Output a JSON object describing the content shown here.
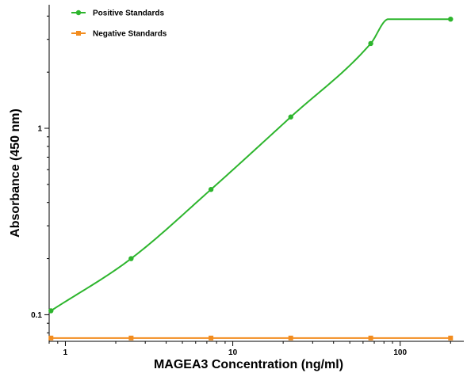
{
  "chart_data": {
    "type": "line",
    "title": "",
    "xlabel": "MAGEA3 Concentration (ng/ml)",
    "ylabel": "Absorbance (450 nm)",
    "xscale": "log",
    "yscale": "log",
    "xlim": [
      0.8,
      240
    ],
    "ylim": [
      0.072,
      4.6
    ],
    "x_ticks": [
      {
        "value": 1,
        "label": "1"
      },
      {
        "value": 10,
        "label": "10"
      },
      {
        "value": 100,
        "label": "100"
      }
    ],
    "y_ticks": [
      {
        "value": 0.1,
        "label": "0.1"
      },
      {
        "value": 1,
        "label": "1"
      }
    ],
    "grid": false,
    "legend_position": "top-left",
    "series": [
      {
        "name": "Positive Standards",
        "color": "#2db52d",
        "marker": "circle",
        "x": [
          0.82,
          2.47,
          7.41,
          22.2,
          66.7,
          200
        ],
        "y": [
          0.105,
          0.2,
          0.47,
          1.15,
          2.85,
          3.85
        ],
        "fit_curve_plateau_start_x": 85
      },
      {
        "name": "Negative Standards",
        "color": "#f28c1e",
        "marker": "square",
        "x": [
          0.82,
          2.47,
          7.41,
          22.2,
          66.7,
          200
        ],
        "y": [
          0.075,
          0.075,
          0.075,
          0.075,
          0.075,
          0.075
        ]
      }
    ]
  }
}
